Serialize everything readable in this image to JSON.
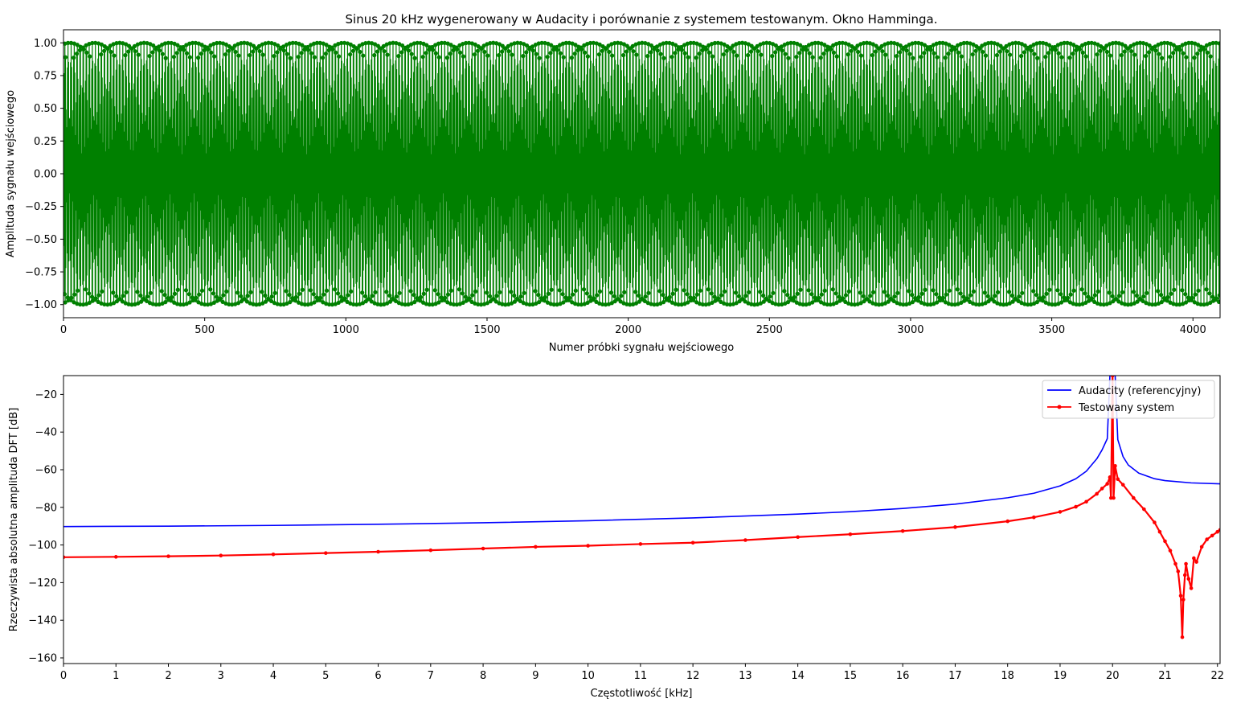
{
  "figure_title": "Sinus 20 kHz wygenerowany w Audacity i porównanie z systemem testowanym. Okno Hamminga.",
  "chart_data": [
    {
      "type": "line",
      "title": "Sinus 20 kHz wygenerowany w Audacity i porównanie z systemem testowanym. Okno Hamminga.",
      "xlabel": "Numer próbki sygnału wejściowego",
      "ylabel": "Amplituda sygnału wejściowego",
      "xlim": [
        0,
        4096
      ],
      "ylim": [
        -1.1,
        1.1
      ],
      "xticks": [
        "0",
        "500",
        "1000",
        "1500",
        "2000",
        "2500",
        "3000",
        "3500",
        "4000"
      ],
      "xtick_values": [
        0,
        500,
        1000,
        1500,
        2000,
        2500,
        3000,
        3500,
        4000
      ],
      "yticks": [
        "1.00",
        "0.75",
        "0.50",
        "0.25",
        "0.00",
        "−0.25",
        "−0.50",
        "−0.75",
        "−1.00"
      ],
      "ytick_values": [
        1.0,
        0.75,
        0.5,
        0.25,
        0.0,
        -0.25,
        -0.5,
        -0.75,
        -1.0
      ],
      "grid": false,
      "series": [
        {
          "color": "#008000",
          "marker": "dot",
          "signal": {
            "kind": "sine",
            "frequency_hz": 20000,
            "sample_rate_hz": 44100,
            "amplitude": 1.0,
            "samples": 4096
          }
        }
      ]
    },
    {
      "type": "line",
      "xlabel": "Częstotliwość [kHz]",
      "ylabel": "Rzeczywista absolutna amplituda DFT [dB]",
      "xlim": [
        0,
        22.05
      ],
      "ylim": [
        -163,
        -10
      ],
      "xticks": [
        "0",
        "1",
        "2",
        "3",
        "4",
        "5",
        "6",
        "7",
        "8",
        "9",
        "10",
        "11",
        "12",
        "13",
        "14",
        "15",
        "16",
        "17",
        "18",
        "19",
        "20",
        "21",
        "22"
      ],
      "xtick_values": [
        0,
        1,
        2,
        3,
        4,
        5,
        6,
        7,
        8,
        9,
        10,
        11,
        12,
        13,
        14,
        15,
        16,
        17,
        18,
        19,
        20,
        21,
        22
      ],
      "yticks": [
        "−20",
        "−40",
        "−60",
        "−80",
        "−100",
        "−120",
        "−140",
        "−160"
      ],
      "ytick_values": [
        -20,
        -40,
        -60,
        -80,
        -100,
        -120,
        -140,
        -160
      ],
      "grid": false,
      "legend": "top-right",
      "series": [
        {
          "name": "Audacity (referencyjny)",
          "color": "#0000ff",
          "x": [
            0,
            2,
            4,
            6,
            8,
            10,
            12,
            14,
            15,
            16,
            17,
            18,
            18.5,
            19,
            19.3,
            19.5,
            19.7,
            19.8,
            19.9,
            19.95,
            20.0,
            20.05,
            20.1,
            20.2,
            20.3,
            20.5,
            20.8,
            21.0,
            21.5,
            22.05
          ],
          "y": [
            -90.2,
            -90.0,
            -89.6,
            -89.0,
            -88.2,
            -87.1,
            -85.6,
            -83.6,
            -82.3,
            -80.6,
            -78.3,
            -74.9,
            -72.5,
            -68.6,
            -64.8,
            -60.8,
            -54.2,
            -49.5,
            -43.5,
            -10,
            -10,
            -10,
            -44.0,
            -53.0,
            -57.5,
            -61.8,
            -64.8,
            -65.8,
            -67.0,
            -67.5
          ]
        },
        {
          "name": "Testowany system",
          "color": "#ff0000",
          "marker": "dot",
          "x": [
            0,
            1,
            2,
            3,
            4,
            5,
            6,
            7,
            8,
            9,
            10,
            11,
            12,
            13,
            14,
            15,
            16,
            17,
            18,
            18.5,
            19,
            19.3,
            19.5,
            19.7,
            19.8,
            19.9,
            19.95,
            19.97,
            20.0,
            20.02,
            20.05,
            20.1,
            20.2,
            20.4,
            20.6,
            20.8,
            20.9,
            21.0,
            21.1,
            21.2,
            21.25,
            21.3,
            21.33,
            21.35,
            21.38,
            21.4,
            21.45,
            21.5,
            21.55,
            21.6,
            21.7,
            21.8,
            21.9,
            22.0,
            22.05
          ],
          "y": [
            -106.5,
            -106.3,
            -106.0,
            -105.6,
            -105.0,
            -104.3,
            -103.6,
            -102.8,
            -101.9,
            -101.0,
            -100.4,
            -99.5,
            -98.8,
            -97.4,
            -95.8,
            -94.3,
            -92.6,
            -90.5,
            -87.4,
            -85.3,
            -82.4,
            -79.7,
            -77.0,
            -72.8,
            -70.0,
            -67.5,
            -64.0,
            -75.0,
            -10,
            -75.0,
            -58.0,
            -65.0,
            -68.0,
            -75.0,
            -81.0,
            -88.0,
            -93.0,
            -98.0,
            -103.0,
            -110.0,
            -114.0,
            -127.0,
            -149.0,
            -129.0,
            -116.0,
            -110.0,
            -118.0,
            -123.0,
            -107.0,
            -109.0,
            -101.0,
            -97.0,
            -95.0,
            -93.0,
            -92.0
          ]
        }
      ]
    }
  ]
}
